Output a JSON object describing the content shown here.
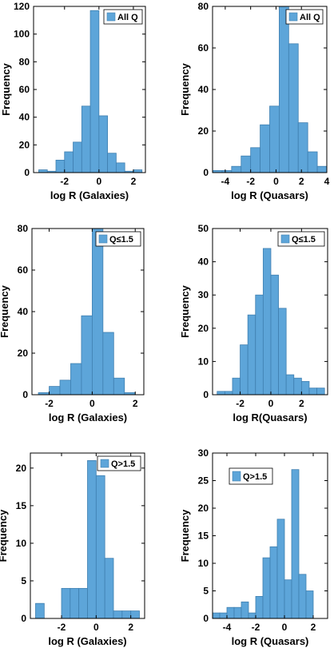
{
  "colors": {
    "bar_fill": "#5DA5D9",
    "bar_edge": "#3F7FB0",
    "axis": "#000000",
    "legend_border": "#000000"
  },
  "chart_data": [
    {
      "type": "bar",
      "legend": "All Q",
      "xlabel": "log R (Galaxies)",
      "ylabel": "Frequency",
      "xlim": [
        -3.8,
        2.7
      ],
      "ylim": [
        0,
        120
      ],
      "xticks": [
        -2,
        0,
        2
      ],
      "yticks": [
        0,
        20,
        40,
        60,
        80,
        100,
        120
      ],
      "bin_edges": [
        -3.5,
        -3.0,
        -2.5,
        -2.0,
        -1.5,
        -1.0,
        -0.5,
        0.0,
        0.5,
        1.0,
        1.5,
        2.0,
        2.5
      ],
      "values": [
        2,
        1,
        9,
        15,
        22,
        48,
        117,
        41,
        14,
        7,
        1,
        2
      ]
    },
    {
      "type": "bar",
      "legend": "All Q",
      "xlabel": "log R (Quasars)",
      "ylabel": "Frequency",
      "xlim": [
        -5,
        4
      ],
      "ylim": [
        0,
        80
      ],
      "xticks": [
        -4,
        -2,
        0,
        2,
        4
      ],
      "yticks": [
        0,
        20,
        40,
        60,
        80
      ],
      "bin_edges": [
        -5.0,
        -4.25,
        -3.5,
        -2.75,
        -2.0,
        -1.25,
        -0.5,
        0.25,
        1.0,
        1.75,
        2.5,
        3.25,
        4.0
      ],
      "values": [
        1,
        1,
        3,
        8,
        12,
        23,
        32,
        80,
        62,
        24,
        10,
        3
      ]
    },
    {
      "type": "bar",
      "legend": "Q≤1.5",
      "xlabel": "log R (Galaxies)",
      "ylabel": "Frequency",
      "xlim": [
        -2.8,
        2.4
      ],
      "ylim": [
        0,
        80
      ],
      "xticks": [
        -2,
        0,
        2
      ],
      "yticks": [
        0,
        20,
        40,
        60,
        80
      ],
      "bin_edges": [
        -2.5,
        -2.0,
        -1.5,
        -1.0,
        -0.5,
        0.0,
        0.5,
        1.0,
        1.5,
        2.0
      ],
      "values": [
        1,
        4,
        7,
        15,
        38,
        80,
        30,
        8,
        1,
        1
      ]
    },
    {
      "type": "bar",
      "legend": "Q≤1.5",
      "xlabel": "log R(Quasars)",
      "ylabel": "Frequency",
      "xlim": [
        -3.8,
        3.7
      ],
      "ylim": [
        0,
        50
      ],
      "xticks": [
        -2,
        0,
        2
      ],
      "yticks": [
        0,
        10,
        20,
        30,
        40,
        50
      ],
      "bin_edges": [
        -3.5,
        -3.0,
        -2.5,
        -2.0,
        -1.5,
        -1.0,
        -0.5,
        0.0,
        0.5,
        1.0,
        1.5,
        2.0,
        2.5,
        3.0,
        3.5
      ],
      "values": [
        1,
        1,
        5,
        15,
        24,
        30,
        44,
        36,
        26,
        6,
        5,
        4,
        2,
        2
      ]
    },
    {
      "type": "bar",
      "legend": "Q>1.5",
      "xlabel": "log R (Galaxies)",
      "ylabel": "Frequency",
      "xlim": [
        -3.8,
        2.8
      ],
      "ylim": [
        0,
        22
      ],
      "xticks": [
        -2,
        0,
        2
      ],
      "yticks": [
        0,
        5,
        10,
        15,
        20
      ],
      "bin_edges": [
        -3.5,
        -3.0,
        -2.5,
        -2.0,
        -1.5,
        -1.0,
        -0.5,
        0.0,
        0.5,
        1.0,
        1.5,
        2.0,
        2.5
      ],
      "values": [
        2,
        0,
        0,
        4,
        4,
        4,
        21,
        19,
        8,
        1,
        1,
        1
      ]
    },
    {
      "type": "bar",
      "legend": "Q>1.5",
      "xlabel": "log R (Quasars)",
      "ylabel": "Frequency",
      "xlim": [
        -5,
        3
      ],
      "ylim": [
        0,
        30
      ],
      "xticks": [
        -4,
        -2,
        0,
        2
      ],
      "yticks": [
        0,
        5,
        10,
        15,
        20,
        25,
        30
      ],
      "bin_edges": [
        -5.0,
        -4.5,
        -4.0,
        -3.5,
        -3.0,
        -2.5,
        -2.0,
        -1.5,
        -1.0,
        -0.5,
        0.0,
        0.5,
        1.0,
        1.5,
        2.0,
        2.5
      ],
      "values": [
        1,
        1,
        2,
        2,
        3,
        1,
        4,
        11,
        13,
        18,
        7,
        27,
        8,
        5,
        0
      ]
    }
  ]
}
